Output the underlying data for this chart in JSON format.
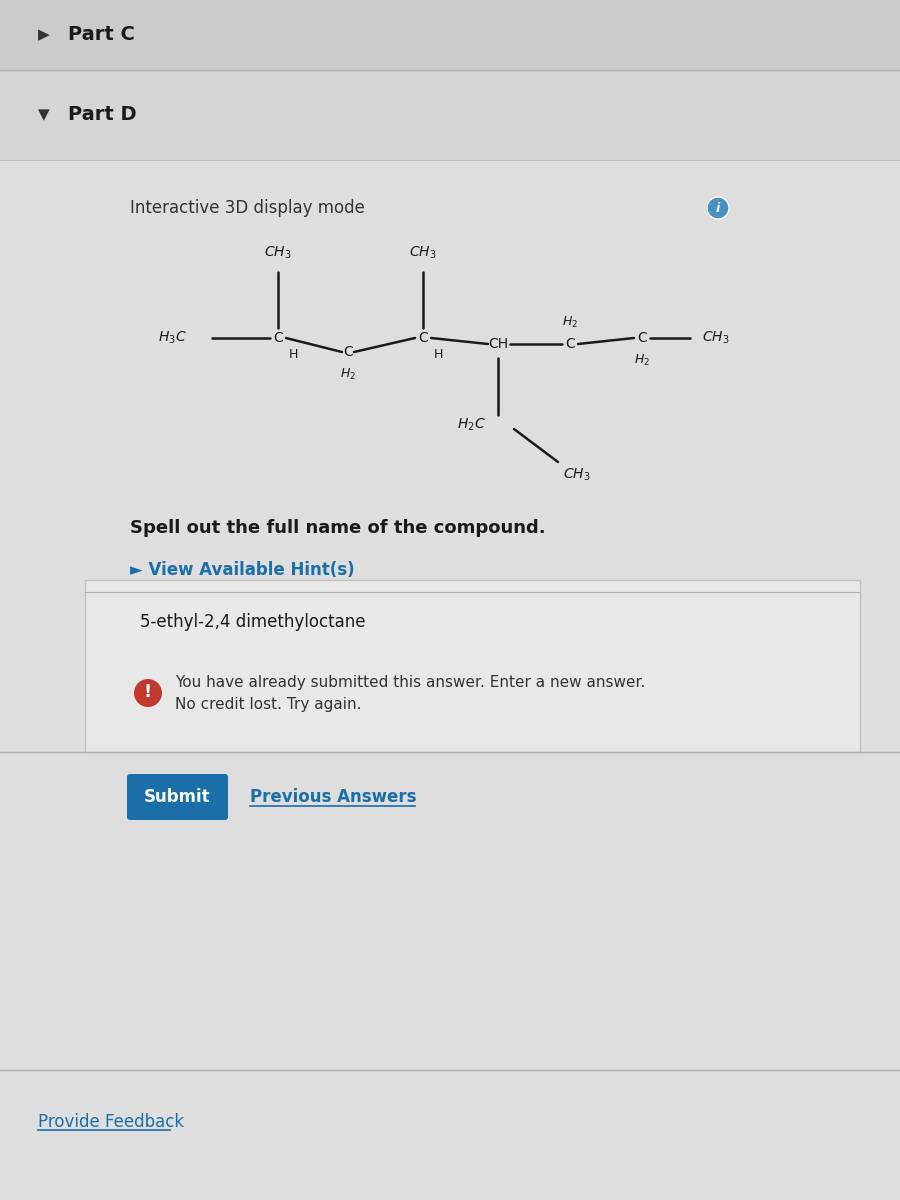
{
  "bg_color": "#d4d4d4",
  "part_c_bg": "#cbcbcb",
  "part_d_bg": "#d5d5d5",
  "main_bg": "#dedede",
  "part_c_text": "Part C",
  "part_d_text": "Part D",
  "interactive_text": "Interactive 3D display mode",
  "spell_text": "Spell out the full name of the compound.",
  "hint_text": "► View Available Hint(s)",
  "hint_color": "#1a6fa8",
  "answer_text": "5-ethyl-2,4 dimethyloctane",
  "warning_line1": "You have already submitted this answer. Enter a new answer.",
  "warning_line2": "No credit lost. Try again.",
  "submit_text": "Submit",
  "submit_bg": "#1a6fa8",
  "prev_answers_text": "Previous Answers",
  "feedback_text": "Provide Feedback",
  "feedback_color": "#1a6fa8",
  "line_color": "#1a1a1a",
  "divider_color": "#b0b0b0",
  "info_circle_color": "#4a90c4",
  "warn_circle_color": "#c0392b"
}
